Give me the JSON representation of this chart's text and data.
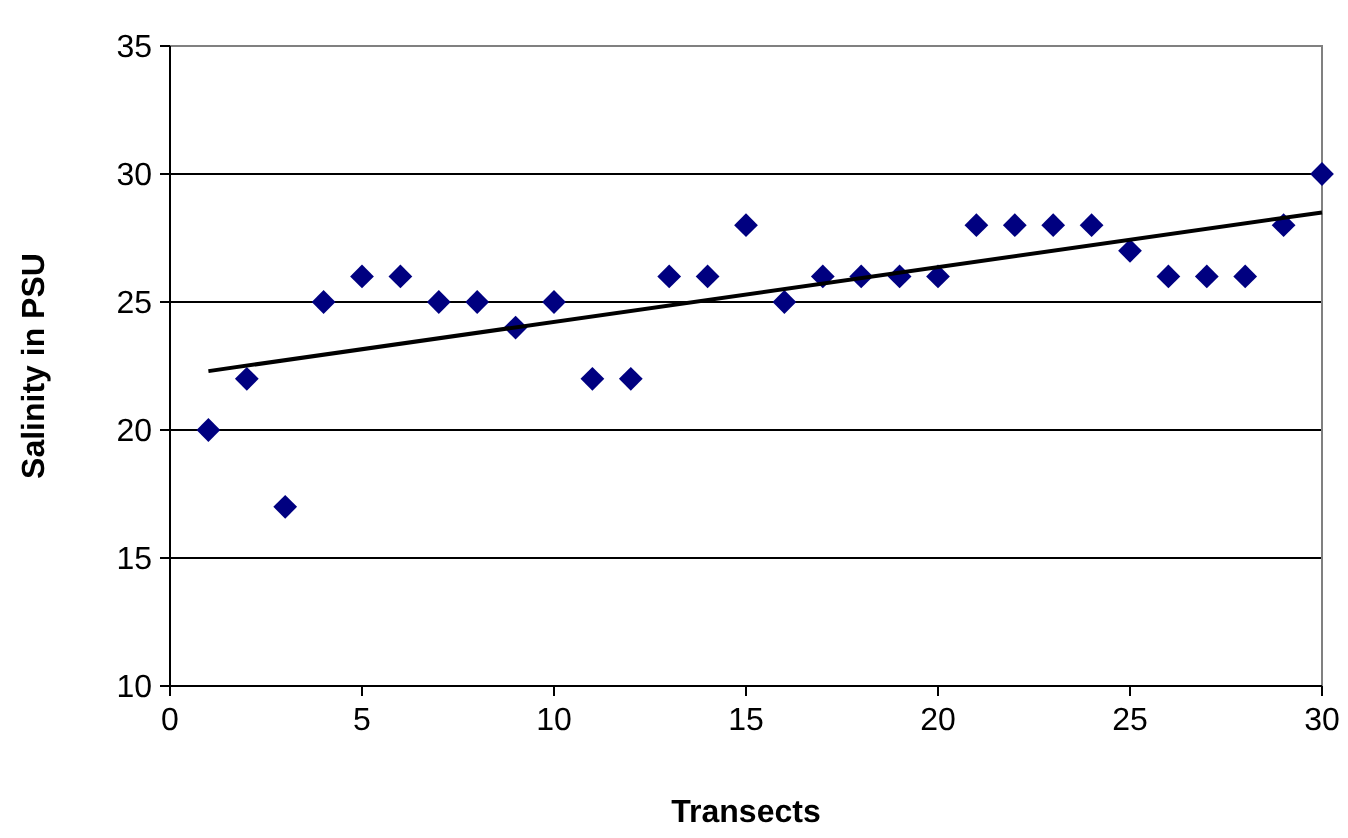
{
  "chart_data": {
    "type": "scatter",
    "xlabel": "Transects",
    "ylabel": "Salinity in PSU",
    "xlim": [
      0,
      30
    ],
    "xticks": [
      0,
      5,
      10,
      15,
      20,
      25,
      30
    ],
    "ylim": [
      10,
      35
    ],
    "yticks": [
      10,
      15,
      20,
      25,
      30,
      35
    ],
    "grid": "y",
    "marker": "diamond",
    "series": [
      {
        "color": "#000080",
        "x": [
          1,
          2,
          3,
          4,
          5,
          6,
          7,
          8,
          9,
          10,
          11,
          12,
          13,
          14,
          15,
          16,
          17,
          18,
          19,
          20,
          21,
          22,
          23,
          24,
          25,
          26,
          27,
          28,
          29,
          30
        ],
        "values": [
          20,
          22,
          17,
          25,
          26,
          26,
          25,
          25,
          24,
          25,
          22,
          22,
          26,
          26,
          28,
          25,
          26,
          26,
          26,
          26,
          28,
          28,
          28,
          28,
          27,
          26,
          26,
          26,
          28,
          30
        ]
      },
      {
        "type": "line",
        "marker": "none",
        "color": "#000000",
        "x": [
          1,
          30
        ],
        "values": [
          22.3,
          28.5
        ]
      }
    ]
  }
}
